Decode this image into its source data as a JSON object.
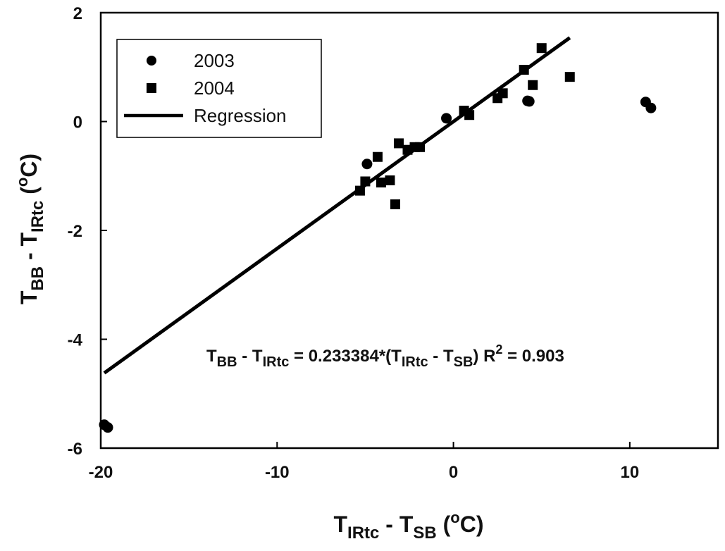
{
  "chart_data": {
    "type": "scatter",
    "xlabel": {
      "main": "T",
      "sub1": "IRtc",
      "mid": " - T",
      "sub2": "SB",
      "pre_unit": " (",
      "sup": "o",
      "post": "C)"
    },
    "ylabel": {
      "main": "T",
      "sub1": "BB",
      "mid": " - T",
      "sub2": "IRtc",
      "pre_unit": " (",
      "sup": "o",
      "post": "C)"
    },
    "xlim": [
      -20,
      15
    ],
    "ylim": [
      -6,
      2
    ],
    "x_ticks": [
      -20,
      -10,
      0,
      10
    ],
    "x_tick_labels": [
      "-20",
      "-10",
      "0",
      "10"
    ],
    "y_ticks": [
      -6,
      -4,
      -2,
      0,
      2
    ],
    "y_tick_labels": [
      "-6",
      "-4",
      "-2",
      "0",
      "2"
    ],
    "grid": false,
    "legend_position": "top-left",
    "legend": [
      "2003",
      "2004",
      "Regression"
    ],
    "series": [
      {
        "name": "2003",
        "marker": "circle",
        "points": [
          [
            -19.8,
            -5.57
          ],
          [
            -19.6,
            -5.62
          ],
          [
            -4.9,
            -0.78
          ],
          [
            -0.4,
            0.06
          ],
          [
            4.2,
            0.38
          ],
          [
            4.3,
            0.37
          ],
          [
            10.9,
            0.36
          ],
          [
            11.2,
            0.25
          ]
        ]
      },
      {
        "name": "2004",
        "marker": "square",
        "points": [
          [
            -5.3,
            -1.27
          ],
          [
            -5.0,
            -1.1
          ],
          [
            -4.3,
            -0.65
          ],
          [
            -4.1,
            -1.12
          ],
          [
            -3.6,
            -1.08
          ],
          [
            -3.3,
            -1.52
          ],
          [
            -3.1,
            -0.4
          ],
          [
            -2.6,
            -0.52
          ],
          [
            -2.2,
            -0.47
          ],
          [
            -1.9,
            -0.47
          ],
          [
            0.6,
            0.2
          ],
          [
            0.9,
            0.12
          ],
          [
            2.5,
            0.43
          ],
          [
            2.8,
            0.52
          ],
          [
            4.0,
            0.95
          ],
          [
            4.5,
            0.67
          ],
          [
            5.0,
            1.35
          ],
          [
            6.6,
            0.82
          ]
        ]
      },
      {
        "name": "Regression",
        "type": "line",
        "points": [
          [
            -19.8,
            -4.62
          ],
          [
            6.6,
            1.54
          ]
        ]
      }
    ],
    "annotation": {
      "lhs_main": "T",
      "lhs_sub1": "BB",
      "lhs_mid": " - T",
      "lhs_sub2": "IRtc",
      "eq_part": " = 0.233384*(T",
      "rhs_sub1": "IRtc",
      "rhs_mid": " - T",
      "rhs_sub2": "SB",
      "rhs_close": ")  R",
      "r2_sup": "2",
      "r2_value": " = 0.903"
    },
    "colors": {
      "markers": "#000000",
      "line": "#000000",
      "frame": "#000000"
    }
  }
}
